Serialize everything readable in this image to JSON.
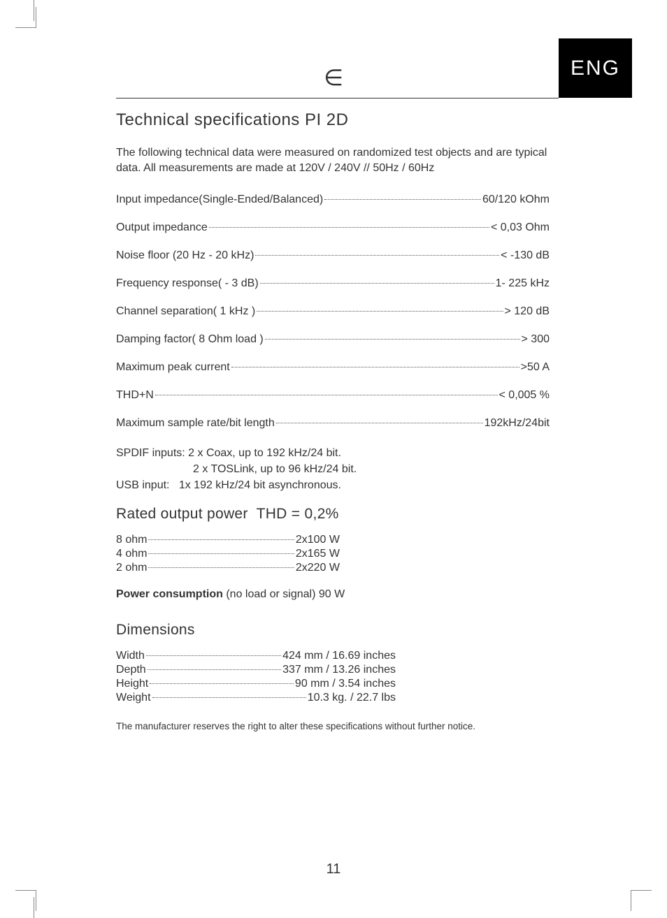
{
  "lang_badge": "ENG",
  "logo_glyph": "∈",
  "title": "Technical specifications PI 2D",
  "intro": "The following technical data were measured on randomized test objects and are typical data. All measurements are made at 120V / 240V // 50Hz / 60Hz",
  "specs": [
    {
      "label": "Input impedance(Single-Ended/Balanced)",
      "value": "60/120 kOhm"
    },
    {
      "label": "Output impedance",
      "value": "< 0,03 Ohm"
    },
    {
      "label": "Noise floor (20 Hz - 20 kHz)",
      "value": "< -130 dB"
    },
    {
      "label": "Frequency response( - 3 dB)",
      "value": "1- 225 kHz"
    },
    {
      "label": "Channel separation( 1 kHz )",
      "value": "> 120 dB"
    },
    {
      "label": "Damping factor( 8 Ohm load ) ",
      "value": "> 300"
    },
    {
      "label": "Maximum peak current",
      "value": ">50 A"
    },
    {
      "label": "THD+N",
      "value": "< 0,005 %"
    },
    {
      "label": "Maximum sample rate/bit length",
      "value": "192kHz/24bit"
    }
  ],
  "inputs": {
    "spdif_line1": "SPDIF inputs: 2 x Coax, up to 192 kHz/24 bit.",
    "spdif_line2": "2 x TOSLink, up to 96 kHz/24 bit.",
    "usb_line": "USB input:   1x 192 kHz/24 bit asynchronous."
  },
  "rated_power_heading": "Rated output power",
  "rated_power_suffix": "  THD = 0,2%",
  "power_rows": [
    {
      "label": "8 ohm",
      "value": " 2x100 W"
    },
    {
      "label": "4 ohm",
      "value": "2x165 W"
    },
    {
      "label": "2 ohm",
      "value": "2x220 W"
    }
  ],
  "power_consumption_label": "Power consumption",
  "power_consumption_rest": " (no load or signal) 90 W",
  "dimensions_heading": "Dimensions",
  "dimension_rows": [
    {
      "label": "Width ",
      "value": "424 mm / 16.69 inches"
    },
    {
      "label": "Depth ",
      "value": "337 mm / 13.26 inches"
    },
    {
      "label": "Height ",
      "value": "90 mm / 3.54 inches"
    },
    {
      "label": "Weight",
      "value": "10.3 kg. / 22.7 lbs"
    }
  ],
  "footnote": "The manufacturer reserves the right to alter these specifications without further notice.",
  "page_number": "11"
}
